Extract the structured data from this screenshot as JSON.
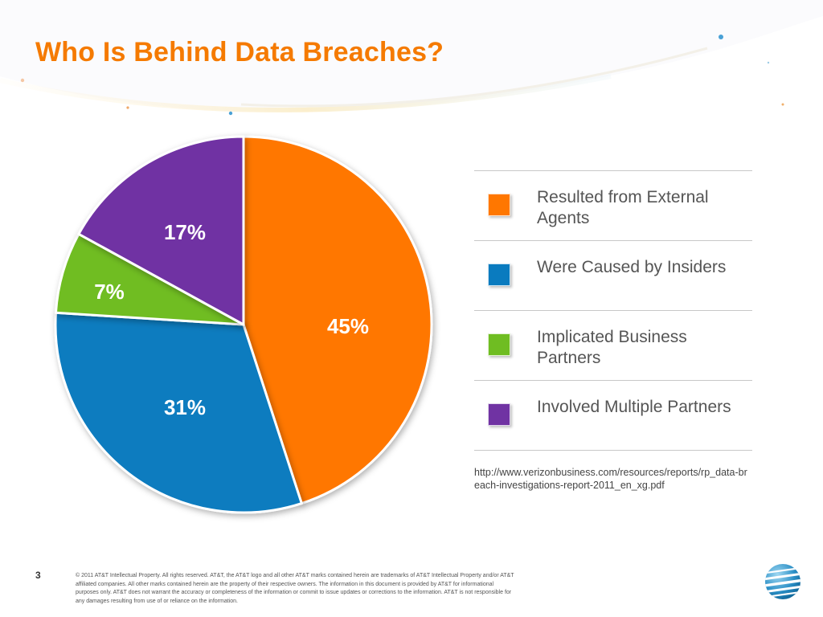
{
  "slide": {
    "title": "Who Is Behind Data Breaches?",
    "page_number": "3",
    "source": "http://www.verizonbusiness.com/resources/reports/rp_data-breach-investigations-report-2011_en_xg.pdf",
    "footer": "© 2011 AT&T Intellectual Property. All rights reserved. AT&T, the AT&T logo and all other AT&T marks contained herein are trademarks of AT&T Intellectual Property and/or AT&T affiliated companies. All other marks contained herein are the property of their respective owners. The information in this document is provided by AT&T for informational purposes only. AT&T does not warrant the accuracy or completeness of the information or commit to issue updates or corrections to the information. AT&T is not responsible for any damages resulting from use of or reliance on the information."
  },
  "colors": {
    "title": "#f57a00",
    "orange": "#ff7700",
    "blue": "#0a7bbf",
    "green": "#6fbd22",
    "purple": "#7033a3"
  },
  "chart_data": {
    "type": "pie",
    "title": "",
    "slices": [
      {
        "label": "Resulted from External Agents",
        "value": 45,
        "display": "45%",
        "color": "#ff7700"
      },
      {
        "label": "Were Caused by Insiders",
        "value": 31,
        "display": "31%",
        "color": "#0a7bbf"
      },
      {
        "label": "Implicated Business Partners",
        "value": 7,
        "display": "7%",
        "color": "#6fbd22"
      },
      {
        "label": "Involved Multiple Partners",
        "value": 17,
        "display": "17%",
        "color": "#7033a3"
      }
    ],
    "legend_position": "right"
  },
  "legend": {
    "items": [
      {
        "label": "Resulted from External Agents",
        "color": "#ff7700"
      },
      {
        "label": "Were Caused by Insiders",
        "color": "#0a7bbf"
      },
      {
        "label": "Implicated Business Partners",
        "color": "#6fbd22"
      },
      {
        "label": "Involved Multiple Partners",
        "color": "#7033a3"
      }
    ]
  },
  "logo": {
    "icon": "att-globe-logo"
  }
}
